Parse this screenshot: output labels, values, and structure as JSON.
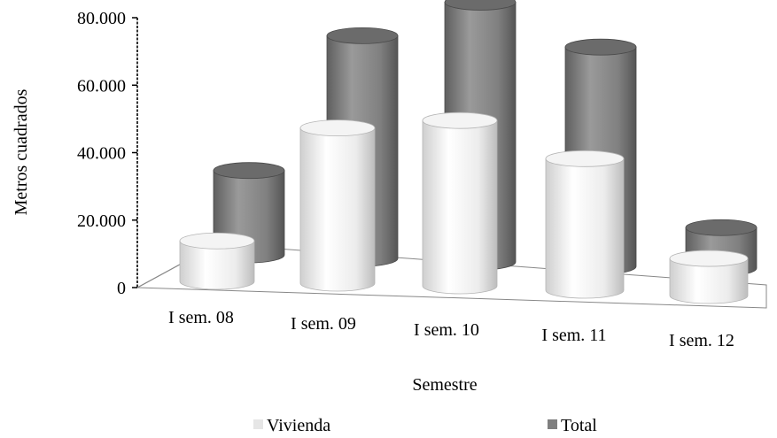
{
  "chart_data": {
    "type": "bar",
    "style": "3d-cylinder",
    "title": "",
    "xlabel": "Semestre",
    "ylabel": "Metros cuadrados",
    "categories": [
      "I sem. 08",
      "I sem. 09",
      "I sem. 10",
      "I sem. 11",
      "I sem. 12"
    ],
    "ylim": [
      0,
      80000
    ],
    "yticks": [
      0,
      20000,
      40000,
      60000,
      80000
    ],
    "ytick_labels": [
      "0",
      "20.000",
      "40.000",
      "60.000",
      "80.000"
    ],
    "series": [
      {
        "name": "Vivienda",
        "color": "#e6e6e6",
        "values": [
          12000,
          46000,
          49000,
          39000,
          11000
        ]
      },
      {
        "name": "Total",
        "color": "#7f7f7f",
        "values": [
          25000,
          66000,
          77000,
          65000,
          12000
        ]
      }
    ],
    "legend_position": "bottom",
    "grid": false
  }
}
